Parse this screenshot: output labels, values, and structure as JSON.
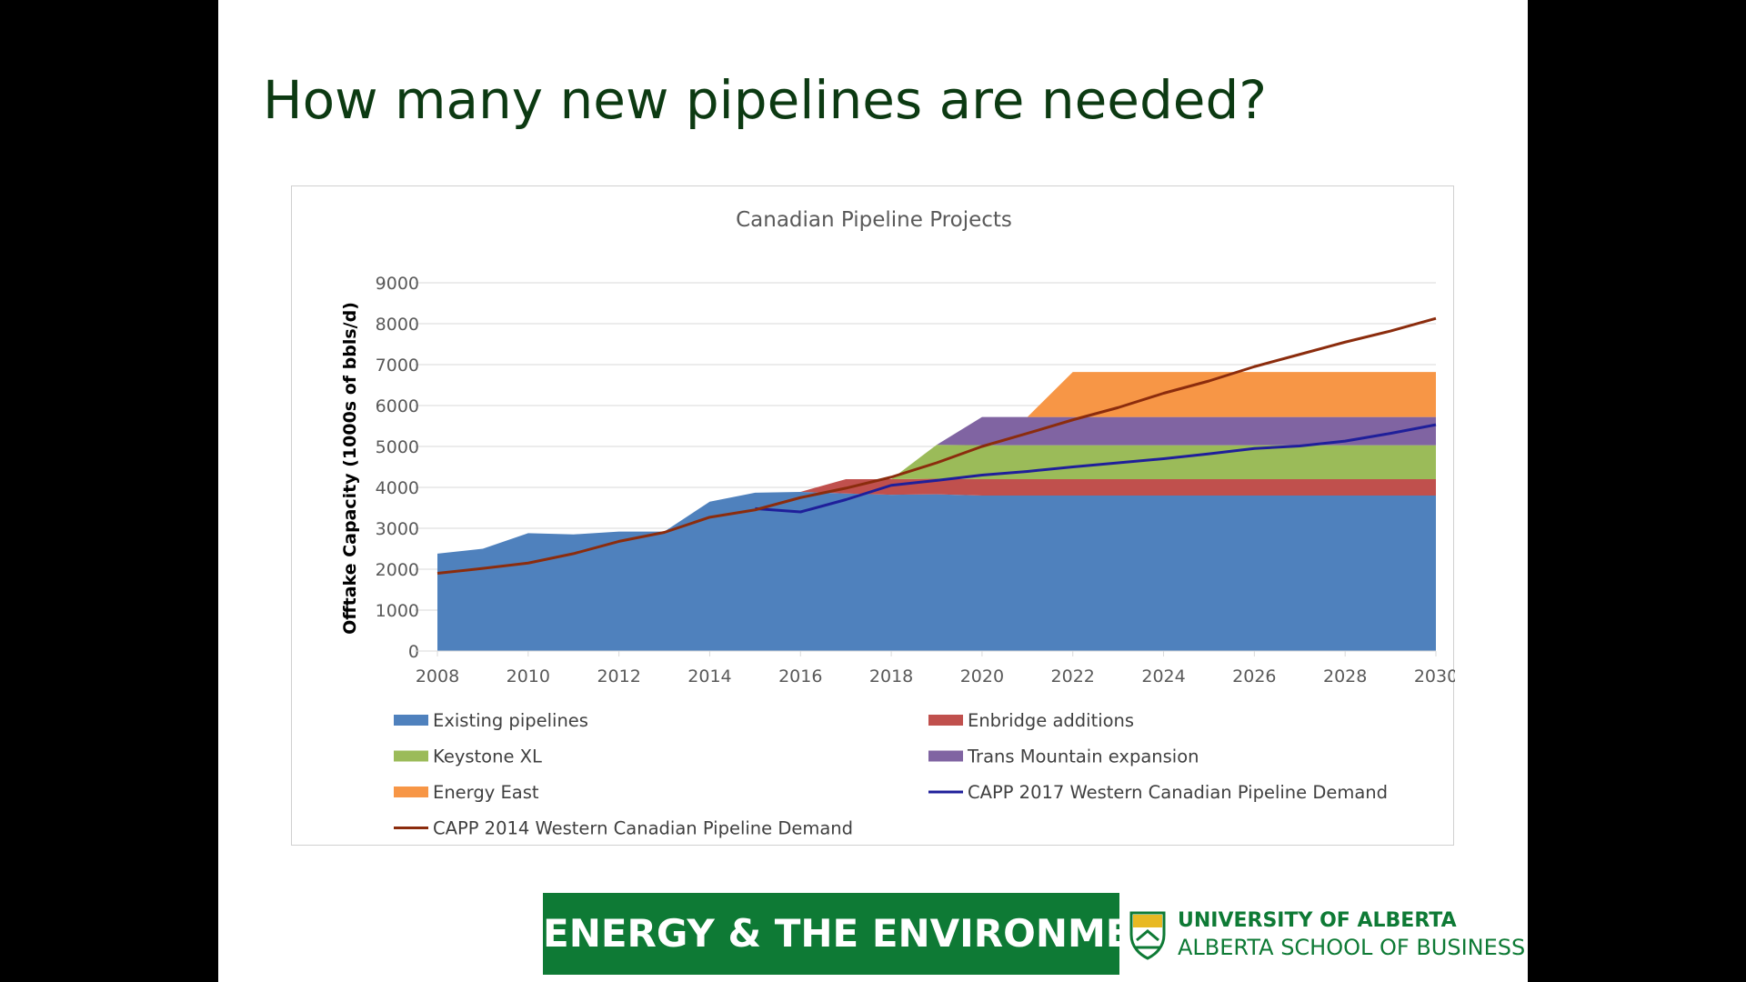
{
  "slide": {
    "title": "How many new pipelines are needed?",
    "footer_banner": "ENERGY & THE ENVIRONMENT",
    "university_line1": "UNIVERSITY OF ALBERTA",
    "university_line2": "ALBERTA SCHOOL OF BUSINESS",
    "brand_green": "#0e7a35",
    "title_color": "#0c3a12"
  },
  "chart_data": {
    "type": "area",
    "title": "Canadian Pipeline Projects",
    "xlabel": "",
    "ylabel": "Offtake Capacity (1000s of bbls/d)",
    "xlim": [
      2008,
      2030
    ],
    "ylim": [
      0,
      9000
    ],
    "y_ticks": [
      0,
      1000,
      2000,
      3000,
      4000,
      5000,
      6000,
      7000,
      8000,
      9000
    ],
    "x_ticks": [
      2008,
      2010,
      2012,
      2014,
      2016,
      2018,
      2020,
      2022,
      2024,
      2026,
      2028,
      2030
    ],
    "grid": "horizontal",
    "legend_position": "bottom",
    "x": [
      2008,
      2009,
      2010,
      2011,
      2012,
      2013,
      2014,
      2015,
      2016,
      2017,
      2018,
      2019,
      2020,
      2021,
      2022,
      2023,
      2024,
      2025,
      2026,
      2027,
      2028,
      2029,
      2030
    ],
    "stacked_areas": [
      {
        "name": "Existing pipelines",
        "color": "#4f81bd",
        "values": [
          2380,
          2500,
          2880,
          2850,
          2920,
          2920,
          3650,
          3870,
          3890,
          3850,
          3820,
          3830,
          3800,
          3800,
          3800,
          3800,
          3800,
          3800,
          3800,
          3800,
          3800,
          3800,
          3800
        ]
      },
      {
        "name": "Enbridge additions",
        "color": "#c0504d",
        "values": [
          0,
          0,
          0,
          0,
          0,
          0,
          0,
          0,
          0,
          350,
          380,
          380,
          400,
          400,
          400,
          400,
          400,
          400,
          400,
          400,
          400,
          400,
          400
        ]
      },
      {
        "name": "Keystone XL",
        "color": "#9bbb59",
        "values": [
          0,
          0,
          0,
          0,
          0,
          0,
          0,
          0,
          0,
          0,
          0,
          830,
          830,
          830,
          830,
          830,
          830,
          830,
          830,
          830,
          830,
          830,
          830
        ]
      },
      {
        "name": "Trans Mountain expansion",
        "color": "#8064a2",
        "values": [
          0,
          0,
          0,
          0,
          0,
          0,
          0,
          0,
          0,
          0,
          0,
          0,
          690,
          690,
          690,
          690,
          690,
          690,
          690,
          690,
          690,
          690,
          690
        ]
      },
      {
        "name": "Energy East",
        "color": "#f79646",
        "values": [
          0,
          0,
          0,
          0,
          0,
          0,
          0,
          0,
          0,
          0,
          0,
          0,
          0,
          0,
          1100,
          1100,
          1100,
          1100,
          1100,
          1100,
          1100,
          1100,
          1100
        ]
      }
    ],
    "lines": [
      {
        "name": "CAPP 2017 Western Canadian Pipeline Demand",
        "color": "#1f1f9a",
        "values": [
          null,
          null,
          null,
          null,
          null,
          null,
          null,
          3480,
          3400,
          3700,
          4050,
          4170,
          4300,
          4390,
          4500,
          4600,
          4700,
          4820,
          4950,
          5010,
          5130,
          5320,
          5530
        ]
      },
      {
        "name": "CAPP 2014 Western Canadian Pipeline Demand",
        "color": "#8b2c0d",
        "values": [
          1900,
          2020,
          2150,
          2380,
          2680,
          2900,
          3270,
          3450,
          3750,
          3980,
          4250,
          4600,
          5000,
          5320,
          5650,
          5950,
          6300,
          6600,
          6950,
          7250,
          7550,
          7820,
          8130
        ]
      }
    ],
    "legend": [
      "Existing pipelines",
      "Enbridge additions",
      "Keystone XL",
      "Trans Mountain expansion",
      "Energy East",
      "CAPP 2017 Western Canadian Pipeline Demand",
      "CAPP 2014 Western Canadian Pipeline Demand"
    ]
  }
}
